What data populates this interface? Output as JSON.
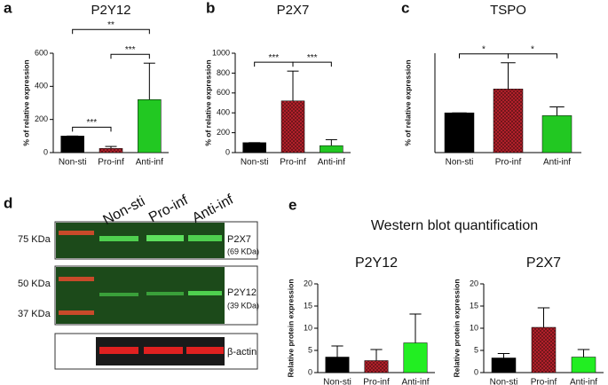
{
  "panel_labels": [
    "a",
    "b",
    "c",
    "d",
    "e"
  ],
  "western_blot_quantification_title": "Western blot quantification",
  "blot": {
    "lanes": [
      "Non-sti",
      "Pro-inf",
      "Anti-inf"
    ],
    "markers": [
      "75 KDa",
      "50 KDa",
      "37 KDa"
    ],
    "bands": [
      {
        "name": "P2X7",
        "size": "(69 KDa)"
      },
      {
        "name": "P2Y12",
        "size": "(39 KDa)"
      },
      {
        "name": "β-actin"
      }
    ]
  },
  "chart_data": [
    {
      "type": "bar",
      "title": "P2Y12",
      "y_label": "% of relative expression",
      "categories": [
        "Non-sti",
        "Pro-inf",
        "Anti-inf"
      ],
      "values": [
        100,
        25,
        320
      ],
      "errors": [
        0,
        12,
        220
      ],
      "colors": [
        "#000000",
        "#b0202a",
        "#22c822"
      ],
      "ylim": [
        0,
        600
      ],
      "yticks": [
        0,
        200,
        400,
        600
      ],
      "annotations": [
        {
          "text": "***",
          "between": [
            0,
            1
          ]
        },
        {
          "text": "**",
          "between": [
            0,
            2
          ]
        },
        {
          "text": "***",
          "between": [
            1,
            2
          ]
        }
      ]
    },
    {
      "type": "bar",
      "title": "P2X7",
      "y_label": "% of relative expression",
      "categories": [
        "Non-sti",
        "Pro-inf",
        "Anti-inf"
      ],
      "values": [
        100,
        520,
        70
      ],
      "errors": [
        0,
        300,
        60
      ],
      "colors": [
        "#000000",
        "#b0202a",
        "#22c822"
      ],
      "ylim": [
        0,
        1000
      ],
      "yticks": [
        0,
        200,
        400,
        600,
        800,
        1000
      ],
      "annotations": [
        {
          "text": "***",
          "between": [
            0,
            1
          ]
        },
        {
          "text": "***",
          "between": [
            1,
            2
          ]
        }
      ]
    },
    {
      "type": "bar",
      "title": "TSPO",
      "y_label": "% of relative expression",
      "categories": [
        "Non-sti",
        "Pro-inf",
        "Anti-inf"
      ],
      "values": [
        100,
        160,
        93
      ],
      "errors": [
        0,
        66,
        22
      ],
      "colors": [
        "#000000",
        "#b0202a",
        "#22c822"
      ],
      "ylim": [
        0,
        250
      ],
      "annotations": [
        {
          "text": "*",
          "between": [
            0,
            1
          ]
        },
        {
          "text": "*",
          "between": [
            1,
            2
          ]
        }
      ]
    },
    {
      "type": "bar",
      "title": "P2Y12",
      "y_label": "Relative protein expression",
      "categories": [
        "Non-sti",
        "Pro-inf",
        "Anti-inf"
      ],
      "values": [
        3.5,
        2.7,
        6.7
      ],
      "errors": [
        2.5,
        2.5,
        6.5
      ],
      "colors": [
        "#000000",
        "#b0202a",
        "#22ee22"
      ],
      "ylim": [
        0,
        20
      ],
      "yticks": [
        0,
        5,
        10,
        15,
        20
      ]
    },
    {
      "type": "bar",
      "title": "P2X7",
      "y_label": "Relative protein expression",
      "categories": [
        "Non-sti",
        "Pro-inf",
        "Anti-inf"
      ],
      "values": [
        3.3,
        10.2,
        3.5
      ],
      "errors": [
        1.0,
        4.4,
        1.7
      ],
      "colors": [
        "#000000",
        "#b0202a",
        "#22ee22"
      ],
      "ylim": [
        0,
        20
      ],
      "yticks": [
        0,
        5,
        10,
        15,
        20
      ]
    }
  ]
}
